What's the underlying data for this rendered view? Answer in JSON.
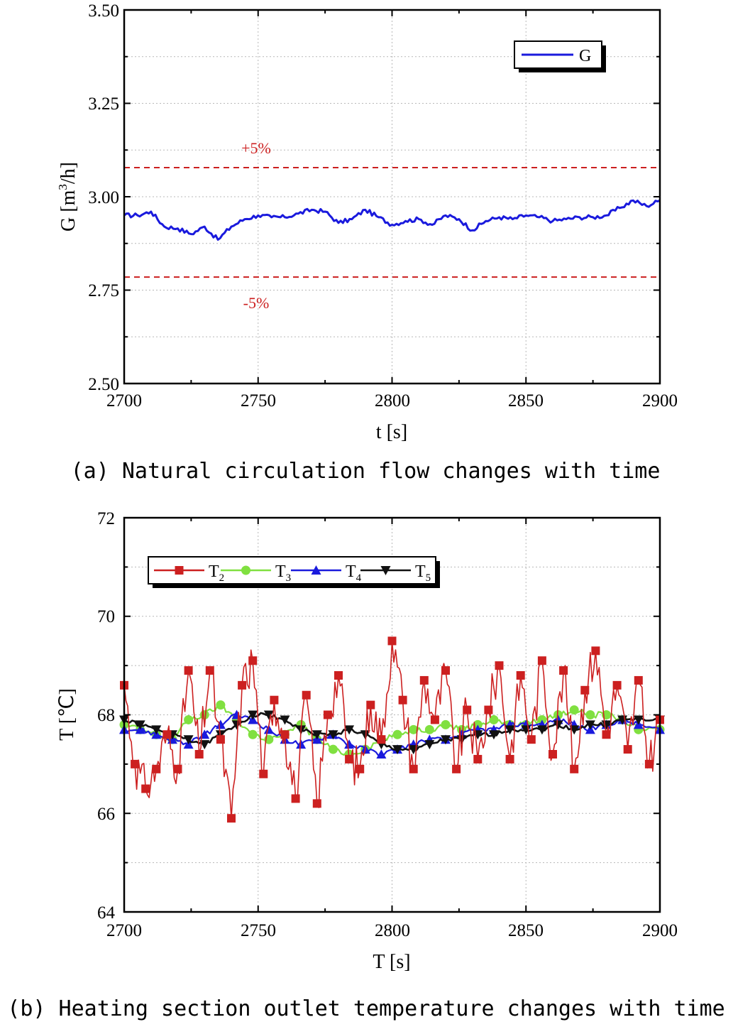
{
  "chart_data": [
    {
      "type": "line",
      "panel": "a",
      "caption": "(a) Natural circulation flow changes with time",
      "xlabel": "t [s]",
      "ylabel": "G [m3/h]",
      "ylabel_base": "G [m",
      "ylabel_sup": "3",
      "ylabel_tail": "/h]",
      "xlim": [
        2700,
        2900
      ],
      "ylim": [
        2.5,
        3.5
      ],
      "xticks": [
        2700,
        2750,
        2800,
        2850,
        2900
      ],
      "yticks": [
        "2.50",
        "2.75",
        "3.00",
        "3.25",
        "3.50"
      ],
      "grid": true,
      "legend": {
        "position": "top-right",
        "entries": [
          "G"
        ]
      },
      "reference_lines": [
        {
          "label": "+5%",
          "y": 3.078,
          "color": "#cc1f1f",
          "style": "dashed"
        },
        {
          "label": "-5%",
          "y": 2.785,
          "color": "#cc1f1f",
          "style": "dashed"
        }
      ],
      "series": [
        {
          "name": "G",
          "color": "#1a1add",
          "x": [
            2700,
            2705,
            2710,
            2715,
            2720,
            2725,
            2730,
            2735,
            2740,
            2745,
            2750,
            2755,
            2760,
            2765,
            2770,
            2775,
            2780,
            2785,
            2790,
            2795,
            2800,
            2805,
            2810,
            2815,
            2820,
            2825,
            2830,
            2835,
            2840,
            2845,
            2850,
            2855,
            2860,
            2865,
            2870,
            2875,
            2880,
            2885,
            2890,
            2895,
            2900
          ],
          "y": [
            2.95,
            2.95,
            2.96,
            2.92,
            2.915,
            2.9,
            2.92,
            2.885,
            2.92,
            2.94,
            2.95,
            2.945,
            2.945,
            2.955,
            2.965,
            2.96,
            2.93,
            2.94,
            2.965,
            2.945,
            2.925,
            2.935,
            2.94,
            2.925,
            2.95,
            2.94,
            2.91,
            2.935,
            2.945,
            2.94,
            2.95,
            2.945,
            2.935,
            2.94,
            2.945,
            2.945,
            2.95,
            2.97,
            2.99,
            2.975,
            2.99
          ]
        }
      ]
    },
    {
      "type": "line",
      "panel": "b",
      "caption": "(b) Heating section outlet temperature changes with time",
      "xlabel": "T [s]",
      "ylabel": "T [℃]",
      "xlim": [
        2700,
        2900
      ],
      "ylim": [
        64,
        72
      ],
      "xticks": [
        2700,
        2750,
        2800,
        2850,
        2900
      ],
      "yticks": [
        "64",
        "66",
        "68",
        "70",
        "72"
      ],
      "grid": true,
      "legend": {
        "position": "top-left",
        "entries": [
          "T2",
          "T3",
          "T4",
          "T5"
        ]
      },
      "series": [
        {
          "name": "T2",
          "label": "T",
          "sub": "2",
          "color": "#cc2020",
          "marker": "square",
          "x": [
            2700,
            2704,
            2708,
            2712,
            2716,
            2720,
            2724,
            2728,
            2732,
            2736,
            2740,
            2744,
            2748,
            2752,
            2756,
            2760,
            2764,
            2768,
            2772,
            2776,
            2780,
            2784,
            2788,
            2792,
            2796,
            2800,
            2804,
            2808,
            2812,
            2816,
            2820,
            2824,
            2828,
            2832,
            2836,
            2840,
            2844,
            2848,
            2852,
            2856,
            2860,
            2864,
            2868,
            2872,
            2876,
            2880,
            2884,
            2888,
            2892,
            2896,
            2900
          ],
          "y": [
            68.6,
            67.0,
            66.5,
            66.9,
            67.6,
            66.9,
            68.9,
            67.2,
            68.9,
            67.5,
            65.9,
            68.6,
            69.1,
            66.8,
            68.3,
            67.6,
            66.3,
            68.4,
            66.2,
            68.0,
            68.8,
            67.1,
            66.9,
            68.2,
            67.5,
            69.5,
            68.3,
            66.9,
            68.7,
            67.9,
            68.9,
            66.9,
            68.1,
            67.1,
            68.1,
            69.0,
            67.1,
            68.8,
            67.5,
            69.1,
            67.2,
            68.9,
            66.9,
            68.5,
            69.3,
            67.6,
            68.6,
            67.3,
            68.7,
            67.0,
            67.9
          ]
        },
        {
          "name": "T3",
          "label": "T",
          "sub": "3",
          "color": "#80e040",
          "marker": "circle",
          "x": [
            2700,
            2706,
            2712,
            2718,
            2724,
            2730,
            2736,
            2742,
            2748,
            2754,
            2760,
            2766,
            2772,
            2778,
            2784,
            2790,
            2796,
            2802,
            2808,
            2814,
            2820,
            2826,
            2832,
            2838,
            2844,
            2850,
            2856,
            2862,
            2868,
            2874,
            2880,
            2886,
            2892,
            2900
          ],
          "y": [
            67.8,
            67.7,
            67.6,
            67.5,
            67.9,
            68.0,
            68.2,
            67.9,
            67.6,
            67.5,
            67.6,
            67.8,
            67.5,
            67.3,
            67.2,
            67.3,
            67.5,
            67.6,
            67.7,
            67.7,
            67.8,
            67.7,
            67.8,
            67.9,
            67.8,
            67.8,
            67.9,
            68.0,
            68.1,
            68.0,
            68.0,
            67.9,
            67.7,
            67.7
          ]
        },
        {
          "name": "T4",
          "label": "T",
          "sub": "4",
          "color": "#1a1add",
          "marker": "triangle-up",
          "x": [
            2700,
            2706,
            2712,
            2718,
            2724,
            2730,
            2736,
            2742,
            2748,
            2754,
            2760,
            2766,
            2772,
            2778,
            2784,
            2790,
            2796,
            2802,
            2808,
            2814,
            2820,
            2826,
            2832,
            2838,
            2844,
            2850,
            2856,
            2862,
            2868,
            2874,
            2880,
            2886,
            2892,
            2900
          ],
          "y": [
            67.7,
            67.7,
            67.6,
            67.5,
            67.4,
            67.6,
            67.8,
            68.0,
            67.9,
            67.7,
            67.5,
            67.4,
            67.5,
            67.6,
            67.4,
            67.3,
            67.2,
            67.3,
            67.4,
            67.5,
            67.5,
            67.6,
            67.7,
            67.7,
            67.8,
            67.8,
            67.8,
            67.9,
            67.8,
            67.7,
            67.8,
            67.9,
            67.8,
            67.7
          ]
        },
        {
          "name": "T5",
          "label": "T",
          "sub": "5",
          "color": "#111111",
          "marker": "triangle-down",
          "x": [
            2700,
            2706,
            2712,
            2718,
            2724,
            2730,
            2736,
            2742,
            2748,
            2754,
            2760,
            2766,
            2772,
            2778,
            2784,
            2790,
            2796,
            2802,
            2808,
            2814,
            2820,
            2826,
            2832,
            2838,
            2844,
            2850,
            2856,
            2862,
            2868,
            2874,
            2880,
            2886,
            2892,
            2900
          ],
          "y": [
            67.9,
            67.8,
            67.7,
            67.6,
            67.5,
            67.4,
            67.6,
            67.8,
            68.0,
            68.0,
            67.9,
            67.7,
            67.6,
            67.6,
            67.7,
            67.6,
            67.4,
            67.3,
            67.3,
            67.4,
            67.5,
            67.5,
            67.6,
            67.6,
            67.7,
            67.7,
            67.7,
            67.8,
            67.7,
            67.8,
            67.8,
            67.9,
            67.9,
            67.9
          ]
        }
      ]
    }
  ]
}
